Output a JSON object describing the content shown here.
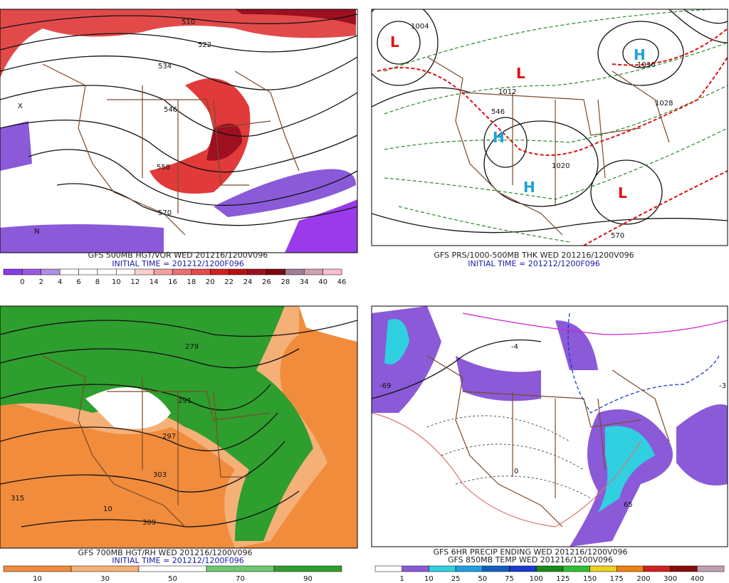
{
  "panels": [
    {
      "caption": "GFS 500MB HGT/VOR WED 201216/1200V096",
      "initial": "INITIAL TIME = 201212/1200F096",
      "scale": [
        "0",
        "2",
        "4",
        "6",
        "8",
        "10",
        "12",
        "14",
        "16",
        "18",
        "20",
        "22",
        "24",
        "26",
        "28",
        "34",
        "40",
        "46"
      ],
      "labels": [
        "510",
        "522",
        "534",
        "546",
        "558",
        "570",
        "X",
        "N"
      ]
    },
    {
      "caption": "GFS PRS/1000-500MB THK WED 201216/1200V096",
      "initial": "INITIAL TIME = 201212/1200F096",
      "labels": [
        "1004",
        "1012",
        "1020",
        "1028",
        "1036",
        "570",
        "546",
        "H",
        "L"
      ]
    },
    {
      "caption": "GFS 700MB HGT/RH WED 201216/1200V096",
      "initial": "INITIAL TIME = 201212/1200F096",
      "scale": [
        "10",
        "30",
        "50",
        "70",
        "90"
      ],
      "labels": [
        "279",
        "291",
        "297",
        "303",
        "309",
        "315",
        "10"
      ]
    },
    {
      "caption": "GFS 6HR PRECIP ENDING WED 201216/1200V096",
      "caption2": "GFS 850MB TEMP WED 201216/1200V096",
      "scale": [
        "1",
        "10",
        "25",
        "50",
        "75",
        "100",
        "125",
        "150",
        "175",
        "200",
        "300",
        "400"
      ],
      "labels": [
        "-3",
        "65",
        "-69",
        "-4",
        "0"
      ]
    }
  ]
}
